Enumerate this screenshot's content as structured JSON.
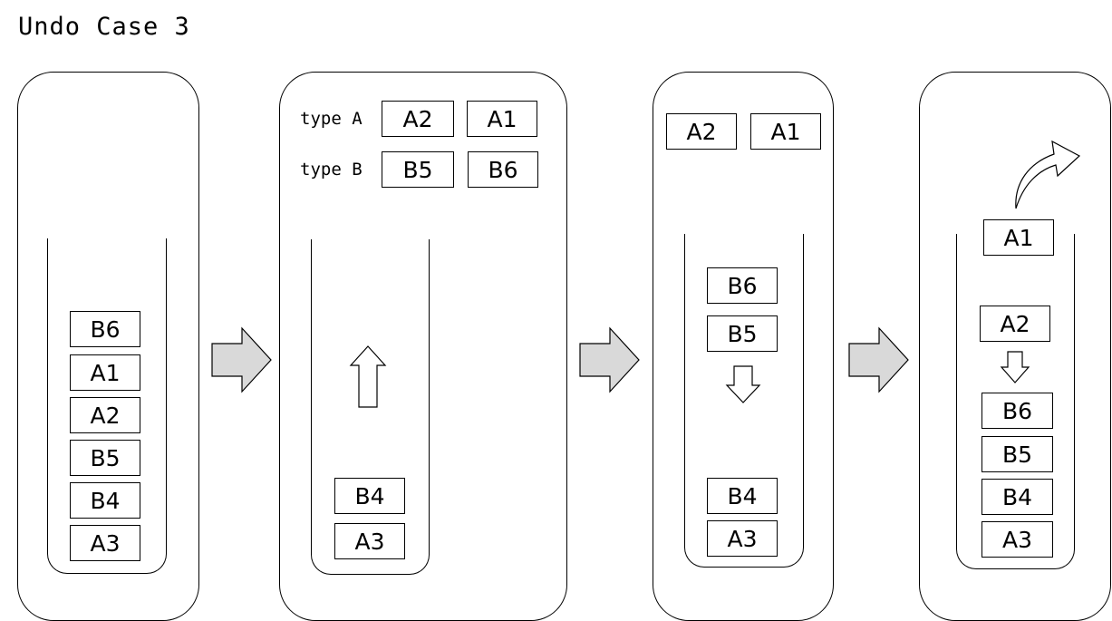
{
  "title": "Undo Case 3",
  "panel1": {
    "stack": [
      "B6",
      "A1",
      "A2",
      "B5",
      "B4",
      "A3"
    ]
  },
  "panel2": {
    "type_a_label": "type A",
    "type_b_label": "type B",
    "type_a": [
      "A2",
      "A1"
    ],
    "type_b": [
      "B5",
      "B6"
    ],
    "stack": [
      "B4",
      "A3"
    ]
  },
  "panel3": {
    "top": [
      "A2",
      "A1"
    ],
    "incoming": [
      "B6",
      "B5"
    ],
    "stack": [
      "B4",
      "A3"
    ]
  },
  "panel4": {
    "popped": "A1",
    "incoming": "A2",
    "stack": [
      "B6",
      "B5",
      "B4",
      "A3"
    ]
  }
}
